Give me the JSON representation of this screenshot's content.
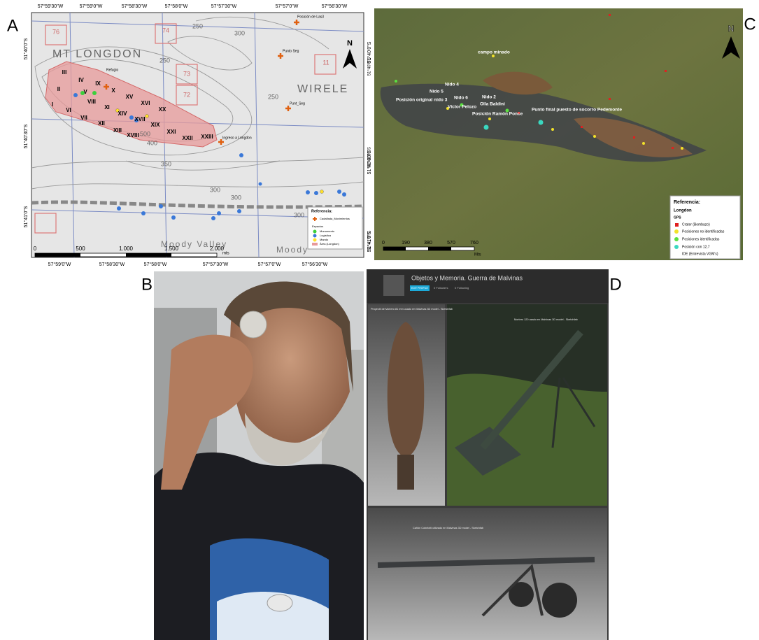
{
  "panel_letters": [
    "A",
    "B",
    "C",
    "D"
  ],
  "map_a": {
    "top_ticks": [
      "57°59'30\"W",
      "57°59'0\"W",
      "57°58'30\"W",
      "57°58'0\"W",
      "57°57'30\"W",
      "57°57'0\"W",
      "57°56'30\"W"
    ],
    "bottom_ticks": [
      "57°59'0\"W",
      "57°58'30\"W",
      "57°58'0\"W",
      "57°57'30\"W",
      "57°57'0\"W",
      "57°56'30\"W"
    ],
    "left_ticks": [
      "51°40'0\"S",
      "51°40'30\"S",
      "51°41'0\"S"
    ],
    "right_ticks": [
      "51°40'0\"S",
      "51°40'30\"S",
      "51°41'0\"S"
    ],
    "sectors": [
      "I",
      "II",
      "III",
      "IV",
      "V",
      "VI",
      "VII",
      "VIII",
      "IX",
      "X",
      "XI",
      "XII",
      "XIII",
      "XIV",
      "XV",
      "XVI",
      "XVII",
      "XVIII",
      "XIX",
      "XX",
      "XXI",
      "XXII",
      "XXIII"
    ],
    "place_labels": [
      "MT LONGDON",
      "WIRELE",
      "Moody Valley",
      "Moody",
      "Refugio",
      "Ingreso a Longdon",
      "Posición de Las3",
      "Punto Seg",
      "Punt_Seg"
    ],
    "contour_labels": [
      "250",
      "300",
      "250",
      "500",
      "400",
      "350",
      "300",
      "300",
      "250",
      "300"
    ],
    "grid_labels": [
      "76",
      "74",
      "73",
      "72",
      "11"
    ],
    "north": "N",
    "scale": [
      "0",
      "500",
      "1.000",
      "1.500",
      "2.000"
    ],
    "scale_unit": "mts",
    "legend": {
      "title": "Referencia:",
      "items": [
        "Cadalfada_Movimientos",
        "Espacios",
        "Monumento",
        "Logística",
        "Mando",
        "Área (Longdon)"
      ]
    }
  },
  "map_c": {
    "left_ticks": [
      "51°40'0\"S",
      "51°40'30\"S",
      "51°41'0\"S"
    ],
    "labels": [
      "campo minado",
      "Nido 4",
      "Nido 5",
      "Nido 6",
      "Nido 2",
      "Posición original nido 3",
      "Olla Baldini",
      "Víctor Pelozo",
      "Posición Ramón Ponce",
      "Punto final puesto de socorro Pedemonte"
    ],
    "north": "N",
    "scale": [
      "0",
      "190",
      "380",
      "570",
      "760"
    ],
    "scale_unit": "Mts",
    "legend": {
      "title": "Referencia:",
      "subtitle": "Longdon",
      "group": "GPS",
      "items": [
        "Crater (Bombazo)",
        "Posiciones no identificadas",
        "Posiciones identificadas",
        "Posición con 12,7"
      ],
      "note": "IDE (Entrevista VGM's)"
    }
  },
  "gallery_d": {
    "title": "Objetos y Memoria. Guerra de Malvinas",
    "button": "EDIT PROFILE",
    "followers": "0 Followers",
    "following": "0 Following",
    "cards": [
      "Proyectil de Mortero 81 mm usado en Malvinas 3D model - Sketchfab",
      "Mortero 120 usado en Malvinas 3D model - Sketchfab",
      "Cañón Cobelotti utilizado en Malvinas 3D model - Sketchfab"
    ]
  }
}
